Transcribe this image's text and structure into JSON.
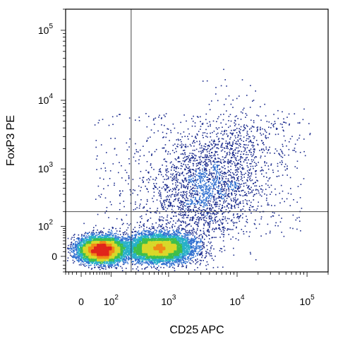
{
  "chart_data": {
    "type": "scatter",
    "xlabel": "CD25 APC",
    "ylabel": "FoxP3 PE",
    "x_scale": "biexponential",
    "y_scale": "biexponential",
    "xlim": [
      -40,
      200000
    ],
    "ylim": [
      -40,
      200000
    ],
    "x_ticks": [
      {
        "value": 0,
        "base": "0",
        "exp": ""
      },
      {
        "value": 100,
        "base": "10",
        "exp": "2"
      },
      {
        "value": 1000,
        "base": "10",
        "exp": "3"
      },
      {
        "value": 10000,
        "base": "10",
        "exp": "4"
      },
      {
        "value": 100000,
        "base": "10",
        "exp": "5"
      }
    ],
    "y_ticks": [
      {
        "value": 0,
        "base": "0",
        "exp": ""
      },
      {
        "value": 100,
        "base": "10",
        "exp": "2"
      },
      {
        "value": 1000,
        "base": "10",
        "exp": "3"
      },
      {
        "value": 10000,
        "base": "10",
        "exp": "4"
      },
      {
        "value": 100000,
        "base": "10",
        "exp": "5"
      }
    ],
    "quadrant_gates": {
      "x": 250,
      "y": 200
    },
    "density_colors": [
      "#1a2a8c",
      "#2f6fd0",
      "#27b0c8",
      "#3fbf4a",
      "#d8d82a",
      "#f08a18",
      "#e0261c"
    ],
    "populations": [
      {
        "center_x": 55,
        "center_y": 15,
        "count": 6500
      },
      {
        "center_x": 700,
        "center_y": 20,
        "count": 6000
      },
      {
        "center_x": 4000,
        "center_y": 600,
        "count": 2400
      }
    ],
    "grid": false,
    "legend": "none"
  }
}
